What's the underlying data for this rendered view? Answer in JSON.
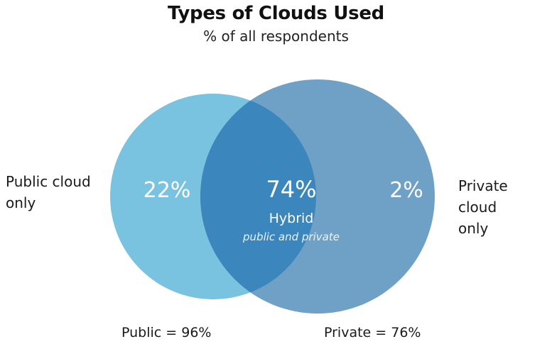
{
  "title": "Types of Clouds Used",
  "subtitle": "% of all respondents",
  "public_circle": {
    "side_label": "Public cloud\nonly",
    "only_value": "22%",
    "total_label": "Public = 96%",
    "color": "#7ac3e0"
  },
  "private_circle": {
    "side_label": "Private cloud\nonly",
    "only_value": "2%",
    "total_label": "Private = 76%",
    "color": "#6fa0c6"
  },
  "overlap": {
    "value": "74%",
    "label": "Hybrid",
    "sublabel": "public and private",
    "color": "#3a86bd"
  }
}
